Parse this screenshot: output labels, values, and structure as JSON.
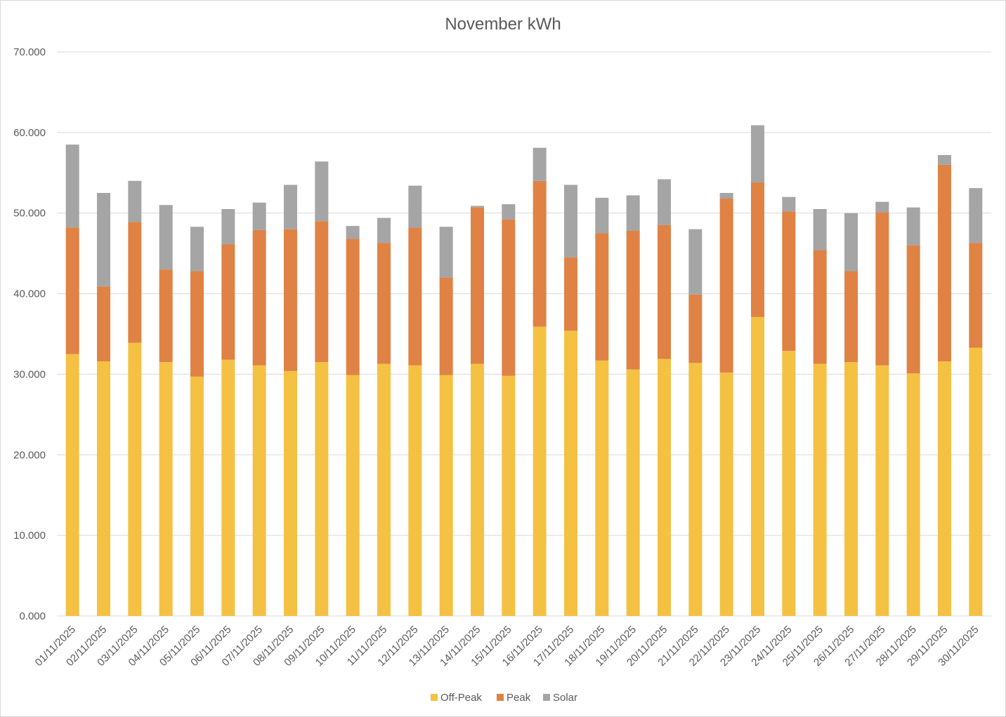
{
  "chart_data": {
    "type": "bar",
    "stacked": true,
    "title": "November kWh",
    "xlabel": "",
    "ylabel": "",
    "ylim": [
      0,
      70
    ],
    "yticks": [
      0,
      10,
      20,
      30,
      40,
      50,
      60,
      70
    ],
    "ytick_labels": [
      "0.000",
      "10.000",
      "20.000",
      "30.000",
      "40.000",
      "50.000",
      "60.000",
      "70.000"
    ],
    "grid": true,
    "legend_position": "bottom",
    "categories": [
      "01/11/2025",
      "02/11/2025",
      "03/11/2025",
      "04/11/2025",
      "05/11/2025",
      "06/11/2025",
      "07/11/2025",
      "08/11/2025",
      "09/11/2025",
      "10/11/2025",
      "11/11/2025",
      "12/11/2025",
      "13/11/2025",
      "14/11/2025",
      "15/11/2025",
      "16/11/2025",
      "17/11/2025",
      "18/11/2025",
      "19/11/2025",
      "20/11/2025",
      "21/11/2025",
      "22/11/2025",
      "23/11/2025",
      "24/11/2025",
      "25/11/2025",
      "26/11/2025",
      "27/11/2025",
      "28/11/2025",
      "29/11/2025",
      "30/11/2025"
    ],
    "series": [
      {
        "name": "Off-Peak",
        "color": "#f4c142",
        "values": [
          32.5,
          31.6,
          33.9,
          31.5,
          29.7,
          31.8,
          31.1,
          30.4,
          31.5,
          29.9,
          31.3,
          31.1,
          29.9,
          31.3,
          29.8,
          35.9,
          35.4,
          31.7,
          30.6,
          31.9,
          31.4,
          30.2,
          37.1,
          32.9,
          31.3,
          31.5,
          31.1,
          30.1,
          31.6,
          33.3
        ]
      },
      {
        "name": "Peak",
        "color": "#df8244",
        "values": [
          15.7,
          9.3,
          15.0,
          11.5,
          13.1,
          14.3,
          16.8,
          17.6,
          17.5,
          16.9,
          15.0,
          17.1,
          12.1,
          19.4,
          19.4,
          18.1,
          9.1,
          15.8,
          17.2,
          16.6,
          8.5,
          21.6,
          16.7,
          17.3,
          14.1,
          11.3,
          19.0,
          15.9,
          24.4,
          13.0
        ]
      },
      {
        "name": "Solar",
        "color": "#a5a5a5",
        "values": [
          10.3,
          11.6,
          5.1,
          8.0,
          5.5,
          4.4,
          3.4,
          5.5,
          7.4,
          1.6,
          3.1,
          5.2,
          6.3,
          0.2,
          1.9,
          4.1,
          9.0,
          4.4,
          4.4,
          5.7,
          8.1,
          0.7,
          7.1,
          1.8,
          5.1,
          7.2,
          1.3,
          4.7,
          1.2,
          6.8
        ]
      }
    ]
  }
}
